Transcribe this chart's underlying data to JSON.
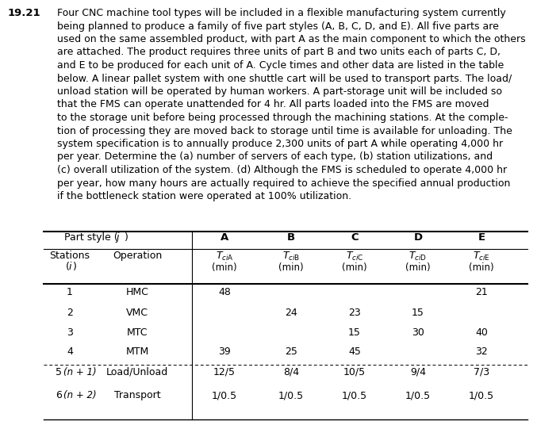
{
  "problem_number": "19.21",
  "text_color": "#000000",
  "bg_color": "#ffffff",
  "para_lines": [
    "Four CNC machine tool types will be included in a flexible manufacturing system currently",
    "being planned to produce a family of five part styles (A, B, C, D, and E). All five parts are",
    "used on the same assembled product, with part A as the main component to which the others",
    "are attached. The product requires three units of part B and two units each of parts C, D,",
    "and E to be produced for each unit of A. Cycle times and other data are listed in the table",
    "below. A linear pallet system with one shuttle cart will be used to transport parts. The load/",
    "unload station will be operated by human workers. A part-storage unit will be included so",
    "that the FMS can operate unattended for 4 hr. All parts loaded into the FMS are moved",
    "to the storage unit before being processed through the machining stations. At the comple-",
    "tion of processing they are moved back to storage until time is available for unloading. The",
    "system specification is to annually produce 2,300 units of part A while operating 4,000 hr",
    "per year. Determine the (a) number of servers of each type, (b) station utilizations, and",
    "(c) overall utilization of the system. (d) Although the FMS is scheduled to operate 4,000 hr",
    "per year, how many hours are actually required to achieve the specified annual production",
    "if the bottleneck station were operated at 100% utilization."
  ],
  "col_headers_ABCDE": [
    "A",
    "B",
    "C",
    "D",
    "E"
  ],
  "t_headers": [
    [
      "T",
      "ci",
      "A",
      "(min)"
    ],
    [
      "T",
      "ci",
      "B",
      "(min)"
    ],
    [
      "T",
      "ci",
      "C",
      "(min)"
    ],
    [
      "T",
      "ci",
      "D",
      "(min)"
    ],
    [
      "T",
      "ci",
      "E",
      "(min)"
    ]
  ],
  "station_rows": [
    {
      "num": "1",
      "op": "HMC",
      "vals": [
        "48",
        "",
        "",
        "",
        "21"
      ]
    },
    {
      "num": "2",
      "op": "VMC",
      "vals": [
        "",
        "24",
        "23",
        "15",
        ""
      ]
    },
    {
      "num": "3",
      "op": "MTC",
      "vals": [
        "",
        "",
        "15",
        "30",
        "40"
      ]
    },
    {
      "num": "4",
      "op": "MTM",
      "vals": [
        "39",
        "25",
        "45",
        "",
        "32"
      ]
    },
    {
      "num": "5",
      "num2": "(n + 1)",
      "op": "Load/Unload",
      "vals": [
        "12/5",
        "8/4",
        "10/5",
        "9/4",
        "7/3"
      ]
    },
    {
      "num": "6",
      "num2": "(n + 2)",
      "op": "Transport",
      "vals": [
        "1/0.5",
        "1/0.5",
        "1/0.5",
        "1/0.5",
        "1/0.5"
      ]
    }
  ],
  "font_size_para": 9.0,
  "font_size_table": 9.0,
  "font_size_number": 9.5
}
